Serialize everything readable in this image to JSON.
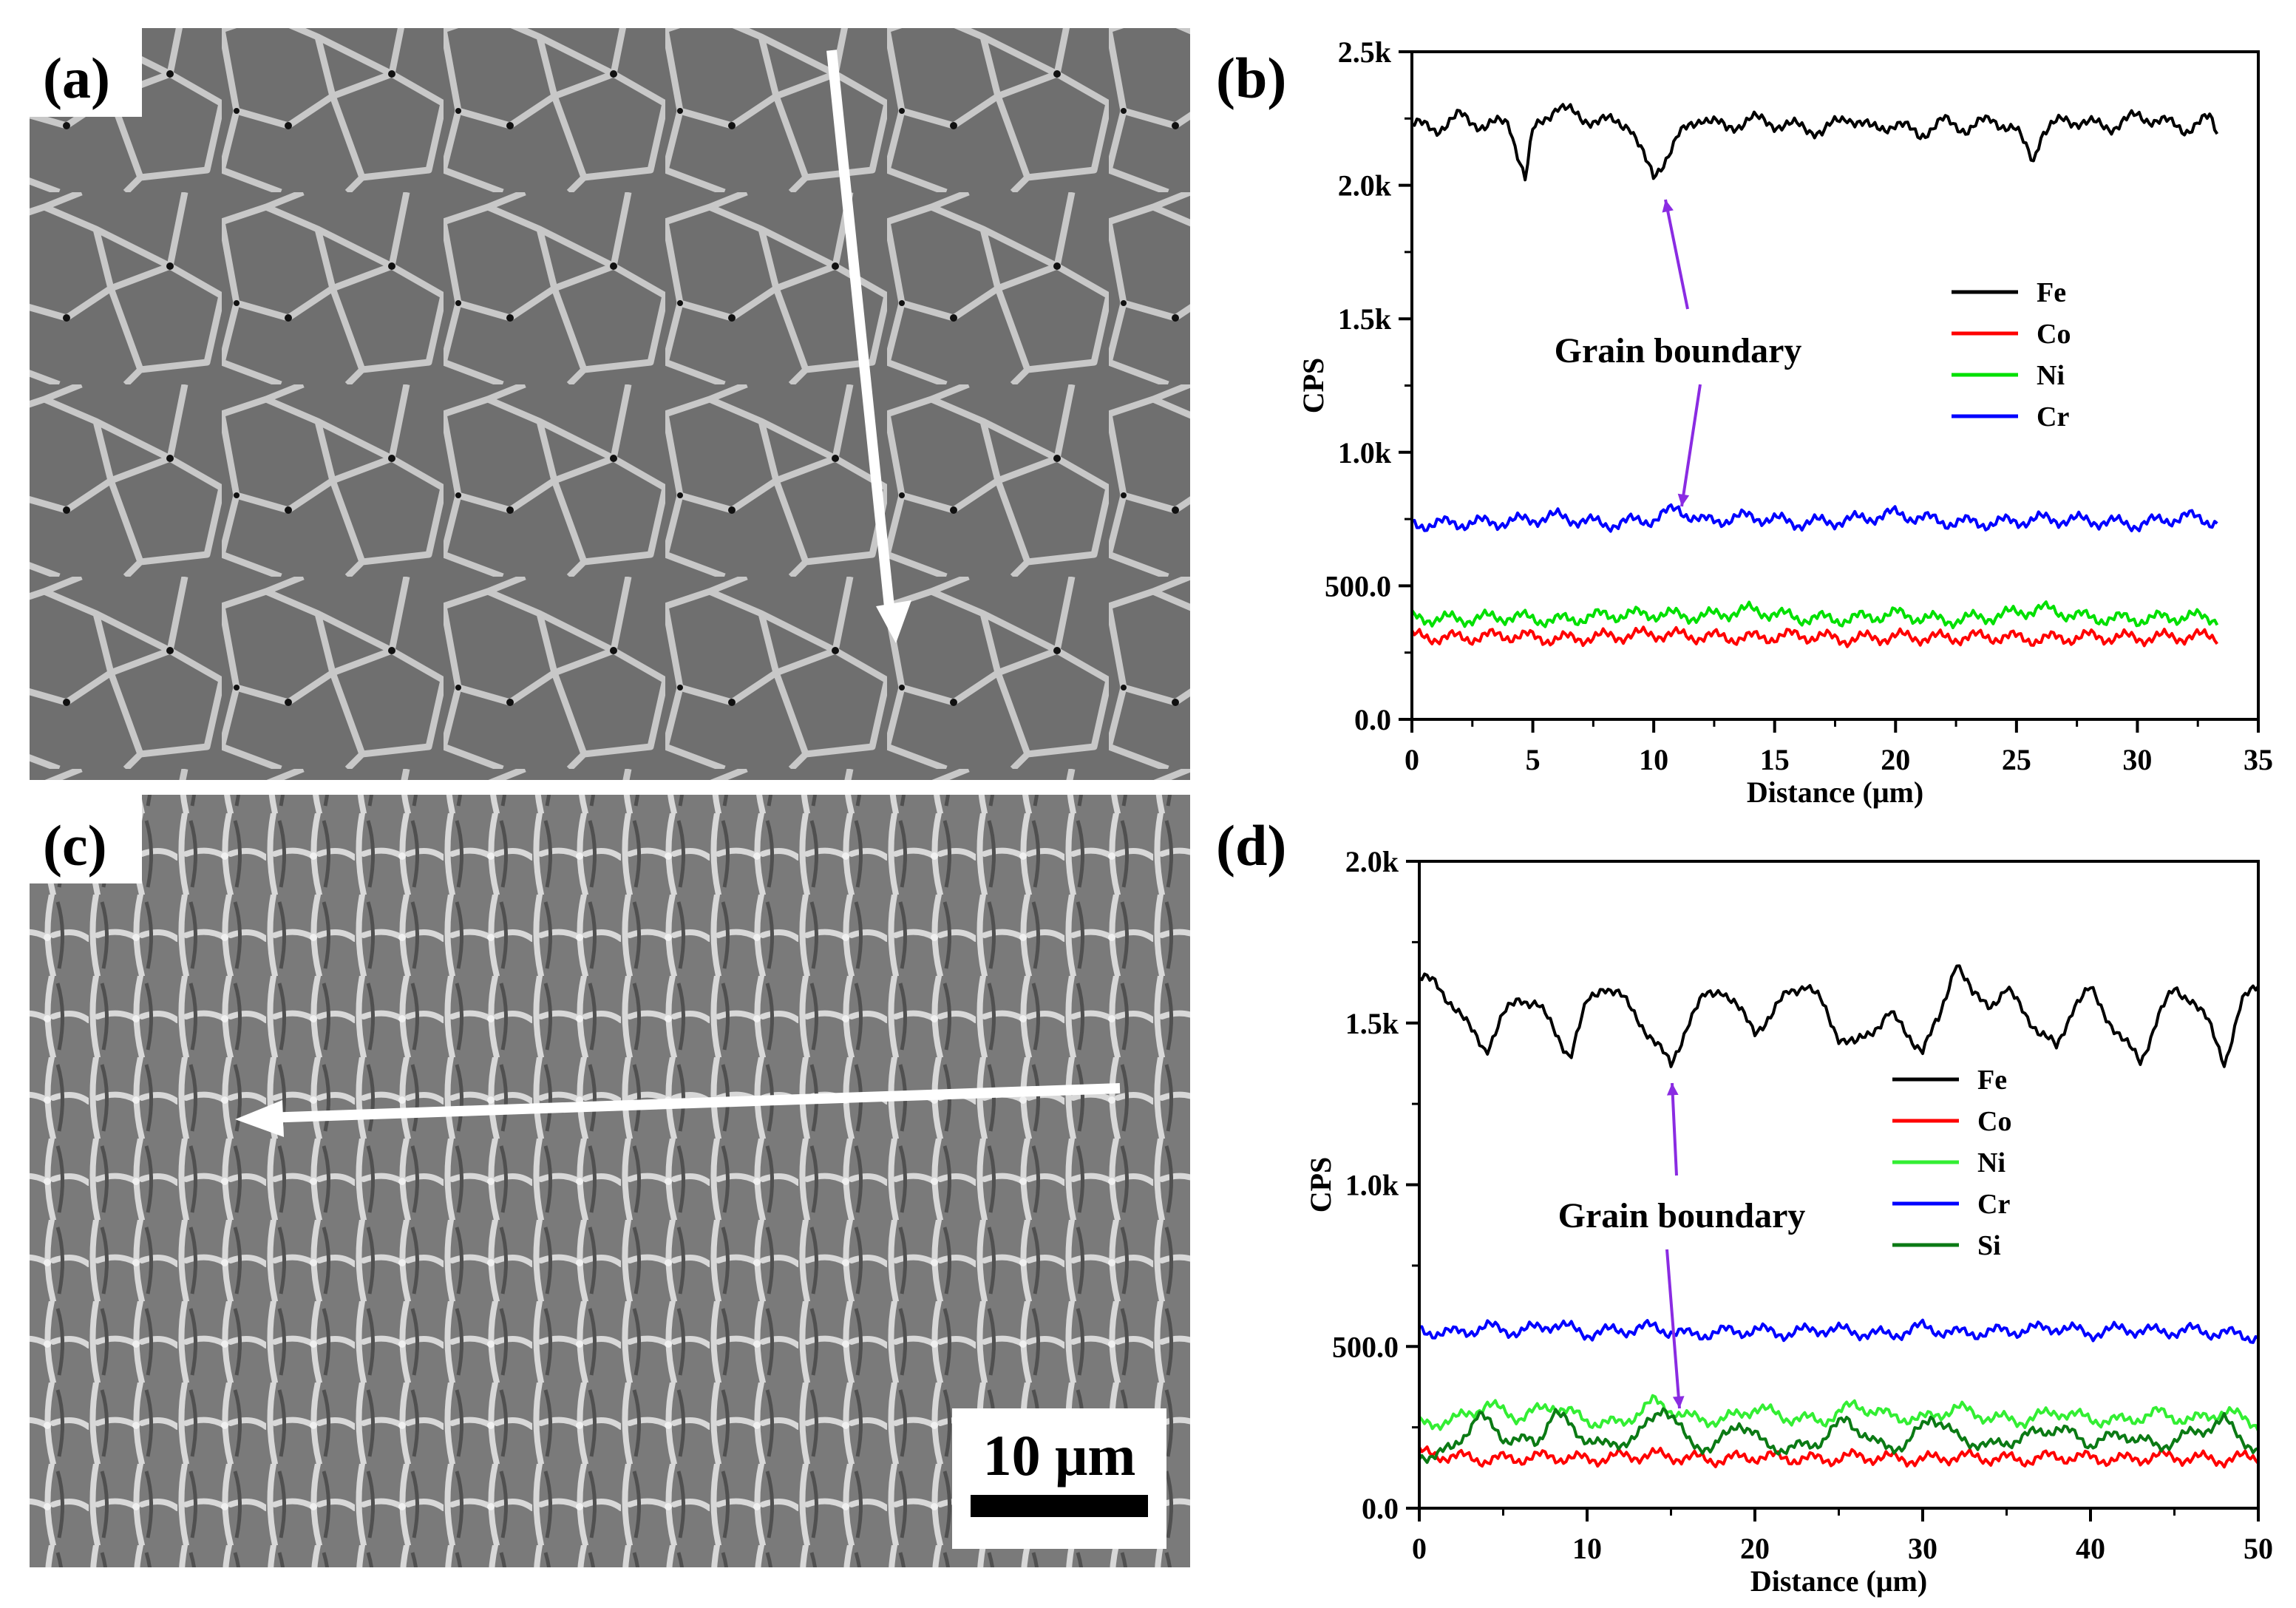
{
  "panels": {
    "a": {
      "label": "(a)"
    },
    "b": {
      "label": "(b)"
    },
    "c": {
      "label": "(c)",
      "scale_bar": "10 μm"
    },
    "d": {
      "label": "(d)"
    }
  },
  "chart_data": [
    {
      "id": "b",
      "type": "line",
      "xlabel": "Distance (μm)",
      "ylabel": "CPS",
      "xlim": [
        0,
        35
      ],
      "ylim": [
        0,
        2500
      ],
      "xticks": [
        0,
        5,
        10,
        15,
        20,
        25,
        30,
        35
      ],
      "yticks": [
        0,
        500,
        1000,
        1500,
        2000,
        2500
      ],
      "ytick_labels": [
        "0.0",
        "500.0",
        "1.0k",
        "1.5k",
        "2.0k",
        "2.5k"
      ],
      "annotation": "Grain boundary",
      "legend_position": "right",
      "grid": false,
      "series": [
        {
          "name": "Fe",
          "color": "#000000",
          "x": [
            0,
            1,
            2,
            3,
            4,
            4.7,
            5,
            6,
            7,
            8,
            9,
            9.7,
            10,
            11,
            12,
            13,
            14,
            15,
            16,
            17,
            18,
            19,
            20,
            21,
            22,
            23,
            24,
            25,
            25.7,
            26,
            27,
            28,
            29,
            30,
            31,
            32,
            33,
            33.3
          ],
          "y": [
            2230,
            2210,
            2260,
            2220,
            2240,
            2020,
            2200,
            2300,
            2250,
            2240,
            2230,
            2080,
            2030,
            2180,
            2260,
            2210,
            2250,
            2230,
            2220,
            2200,
            2260,
            2210,
            2230,
            2190,
            2240,
            2210,
            2250,
            2200,
            2100,
            2190,
            2250,
            2230,
            2220,
            2260,
            2240,
            2210,
            2250,
            2200
          ]
        },
        {
          "name": "Co",
          "color": "#ff0000",
          "x": [
            0,
            2,
            4,
            6,
            8,
            10,
            12,
            14,
            16,
            18,
            20,
            22,
            24,
            26,
            28,
            30,
            32,
            33.3
          ],
          "y": [
            310,
            305,
            315,
            300,
            310,
            320,
            310,
            305,
            315,
            300,
            310,
            305,
            310,
            300,
            310,
            305,
            310,
            310
          ]
        },
        {
          "name": "Ni",
          "color": "#00e000",
          "x": [
            0,
            2,
            4,
            6,
            8,
            10,
            12,
            14,
            16,
            18,
            20,
            22,
            24,
            26,
            28,
            30,
            32,
            33.3
          ],
          "y": [
            380,
            375,
            385,
            370,
            390,
            395,
            385,
            410,
            380,
            375,
            395,
            370,
            385,
            415,
            380,
            375,
            385,
            380
          ]
        },
        {
          "name": "Cr",
          "color": "#0000ff",
          "x": [
            0,
            2,
            4,
            6,
            8,
            10,
            11,
            12,
            14,
            16,
            18,
            20,
            22,
            24,
            26,
            28,
            30,
            32,
            33.3
          ],
          "y": [
            730,
            735,
            740,
            760,
            730,
            750,
            790,
            740,
            760,
            735,
            745,
            770,
            740,
            735,
            750,
            745,
            730,
            760,
            740
          ]
        }
      ]
    },
    {
      "id": "d",
      "type": "line",
      "xlabel": "Distance (μm)",
      "ylabel": "CPS",
      "xlim": [
        0,
        50
      ],
      "ylim": [
        0,
        2000
      ],
      "xticks": [
        0,
        10,
        20,
        30,
        40,
        50
      ],
      "yticks": [
        0,
        500,
        1000,
        1500,
        2000
      ],
      "ytick_labels": [
        "0.0",
        "500.0",
        "1.0k",
        "1.5k",
        "2.0k"
      ],
      "annotation": "Grain boundary",
      "legend_position": "right",
      "grid": false,
      "series": [
        {
          "name": "Fe",
          "color": "#000000",
          "x": [
            0,
            1,
            2,
            3,
            4,
            5,
            6,
            7,
            8,
            9,
            10,
            11,
            12,
            13,
            14,
            15,
            16,
            17,
            18,
            19,
            20,
            21,
            22,
            23,
            24,
            25,
            26,
            27,
            28,
            29,
            30,
            31,
            32,
            33,
            34,
            35,
            36,
            37,
            38,
            39,
            40,
            41,
            42,
            43,
            44,
            45,
            46,
            47,
            48,
            49,
            50
          ],
          "y": [
            1640,
            1620,
            1560,
            1480,
            1420,
            1520,
            1580,
            1560,
            1480,
            1400,
            1560,
            1620,
            1580,
            1520,
            1440,
            1370,
            1500,
            1580,
            1610,
            1540,
            1480,
            1520,
            1600,
            1620,
            1560,
            1460,
            1430,
            1480,
            1530,
            1470,
            1420,
            1510,
            1700,
            1580,
            1560,
            1600,
            1540,
            1470,
            1420,
            1560,
            1600,
            1520,
            1440,
            1380,
            1520,
            1600,
            1580,
            1500,
            1380,
            1560,
            1620
          ]
        },
        {
          "name": "Co",
          "color": "#ff0000",
          "x": [
            0,
            2,
            4,
            6,
            8,
            10,
            12,
            14,
            16,
            18,
            20,
            22,
            24,
            26,
            28,
            30,
            32,
            34,
            36,
            38,
            40,
            42,
            44,
            46,
            48,
            50
          ],
          "y": [
            170,
            160,
            150,
            155,
            160,
            150,
            160,
            165,
            155,
            150,
            160,
            155,
            150,
            160,
            155,
            150,
            160,
            155,
            150,
            160,
            155,
            150,
            160,
            155,
            150,
            160
          ]
        },
        {
          "name": "Ni",
          "color": "#33ee33",
          "x": [
            0,
            2,
            4,
            6,
            8,
            10,
            12,
            14,
            16,
            18,
            20,
            22,
            24,
            26,
            28,
            30,
            32,
            34,
            36,
            38,
            40,
            42,
            44,
            46,
            48,
            50
          ],
          "y": [
            260,
            270,
            320,
            280,
            320,
            270,
            260,
            330,
            280,
            270,
            310,
            280,
            270,
            320,
            285,
            275,
            310,
            280,
            270,
            300,
            275,
            270,
            295,
            270,
            300,
            260
          ]
        },
        {
          "name": "Cr",
          "color": "#0000ff",
          "x": [
            0,
            2,
            4,
            6,
            8,
            10,
            12,
            14,
            16,
            18,
            20,
            22,
            24,
            26,
            28,
            30,
            32,
            34,
            36,
            38,
            40,
            42,
            44,
            46,
            48,
            50
          ],
          "y": [
            550,
            540,
            560,
            545,
            570,
            540,
            550,
            560,
            535,
            545,
            550,
            540,
            555,
            545,
            535,
            560,
            540,
            545,
            550,
            560,
            540,
            555,
            545,
            550,
            540,
            530
          ]
        },
        {
          "name": "Si",
          "color": "#0b7a14",
          "x": [
            0,
            2,
            3.5,
            5,
            7,
            8,
            9.5,
            11,
            13,
            14.5,
            16,
            17.5,
            19,
            20.5,
            22,
            24,
            25.5,
            27,
            29,
            30.5,
            32,
            34,
            36,
            38,
            40,
            42,
            44,
            46,
            48,
            50
          ],
          "y": [
            160,
            180,
            290,
            220,
            200,
            300,
            230,
            190,
            220,
            320,
            210,
            180,
            270,
            200,
            180,
            210,
            280,
            200,
            190,
            290,
            220,
            190,
            220,
            250,
            200,
            230,
            190,
            230,
            270,
            170
          ]
        }
      ]
    }
  ]
}
